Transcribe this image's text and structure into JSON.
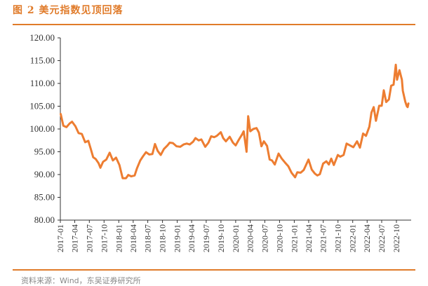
{
  "figure": {
    "title": "图 2 美元指数见顶回落",
    "source": "资料来源：Wind，东吴证券研究所"
  },
  "colors": {
    "accent": "#E07B2A",
    "line": "#ED7D31",
    "axis": "#333333"
  },
  "chart_data": {
    "type": "line",
    "title": "",
    "xlabel": "",
    "ylabel": "",
    "ylim": [
      80,
      120
    ],
    "yticks": [
      "80.00",
      "85.00",
      "90.00",
      "95.00",
      "100.00",
      "105.00",
      "110.00",
      "115.00",
      "120.00"
    ],
    "xticks": [
      "2017-01",
      "2017-04",
      "2017-07",
      "2017-10",
      "2018-01",
      "2018-04",
      "2018-07",
      "2018-10",
      "2019-01",
      "2019-04",
      "2019-07",
      "2019-10",
      "2020-01",
      "2020-04",
      "2020-07",
      "2020-10",
      "2021-01",
      "2021-04",
      "2021-07",
      "2021-10",
      "2022-01",
      "2022-04",
      "2022-07",
      "2022-10"
    ],
    "grid": false,
    "legend": "none",
    "series": [
      {
        "values": [
          [
            "2017-01-03",
            103.3
          ],
          [
            "2017-01-20",
            100.7
          ],
          [
            "2017-02-08",
            100.4
          ],
          [
            "2017-02-28",
            101.2
          ],
          [
            "2017-03-15",
            101.6
          ],
          [
            "2017-04-05",
            100.6
          ],
          [
            "2017-04-25",
            99.1
          ],
          [
            "2017-05-15",
            98.9
          ],
          [
            "2017-06-05",
            97.1
          ],
          [
            "2017-06-25",
            97.4
          ],
          [
            "2017-07-10",
            95.6
          ],
          [
            "2017-07-25",
            93.8
          ],
          [
            "2017-08-10",
            93.4
          ],
          [
            "2017-08-28",
            92.5
          ],
          [
            "2017-09-08",
            91.5
          ],
          [
            "2017-09-25",
            92.8
          ],
          [
            "2017-10-15",
            93.3
          ],
          [
            "2017-11-05",
            94.8
          ],
          [
            "2017-11-25",
            93.1
          ],
          [
            "2017-12-15",
            93.7
          ],
          [
            "2018-01-05",
            92.1
          ],
          [
            "2018-01-25",
            89.2
          ],
          [
            "2018-02-15",
            89.2
          ],
          [
            "2018-03-01",
            89.9
          ],
          [
            "2018-03-20",
            89.6
          ],
          [
            "2018-04-10",
            89.8
          ],
          [
            "2018-04-25",
            91.4
          ],
          [
            "2018-05-15",
            93.1
          ],
          [
            "2018-06-01",
            94.0
          ],
          [
            "2018-06-20",
            94.9
          ],
          [
            "2018-07-10",
            94.4
          ],
          [
            "2018-07-30",
            94.5
          ],
          [
            "2018-08-15",
            96.7
          ],
          [
            "2018-09-01",
            95.2
          ],
          [
            "2018-09-20",
            94.3
          ],
          [
            "2018-10-10",
            95.6
          ],
          [
            "2018-11-01",
            96.4
          ],
          [
            "2018-11-15",
            97.0
          ],
          [
            "2018-12-05",
            96.9
          ],
          [
            "2018-12-28",
            96.2
          ],
          [
            "2019-01-20",
            96.1
          ],
          [
            "2019-02-10",
            96.6
          ],
          [
            "2019-03-01",
            96.8
          ],
          [
            "2019-03-20",
            96.6
          ],
          [
            "2019-04-10",
            97.2
          ],
          [
            "2019-04-25",
            98.0
          ],
          [
            "2019-05-15",
            97.5
          ],
          [
            "2019-06-01",
            97.7
          ],
          [
            "2019-06-25",
            96.1
          ],
          [
            "2019-07-15",
            97.0
          ],
          [
            "2019-08-01",
            98.4
          ],
          [
            "2019-08-20",
            98.2
          ],
          [
            "2019-09-05",
            98.5
          ],
          [
            "2019-09-30",
            99.3
          ],
          [
            "2019-10-15",
            98.0
          ],
          [
            "2019-11-01",
            97.3
          ],
          [
            "2019-11-25",
            98.3
          ],
          [
            "2019-12-15",
            97.0
          ],
          [
            "2020-01-01",
            96.4
          ],
          [
            "2020-01-20",
            97.6
          ],
          [
            "2020-02-10",
            98.8
          ],
          [
            "2020-02-20",
            99.5
          ],
          [
            "2020-03-09",
            95.0
          ],
          [
            "2020-03-19",
            102.8
          ],
          [
            "2020-04-01",
            99.5
          ],
          [
            "2020-04-20",
            100.0
          ],
          [
            "2020-05-10",
            100.2
          ],
          [
            "2020-05-25",
            99.2
          ],
          [
            "2020-06-10",
            96.2
          ],
          [
            "2020-06-25",
            97.3
          ],
          [
            "2020-07-15",
            96.3
          ],
          [
            "2020-07-31",
            93.3
          ],
          [
            "2020-08-15",
            93.1
          ],
          [
            "2020-09-01",
            92.2
          ],
          [
            "2020-09-25",
            94.6
          ],
          [
            "2020-10-15",
            93.5
          ],
          [
            "2020-11-05",
            92.6
          ],
          [
            "2020-11-25",
            91.8
          ],
          [
            "2020-12-15",
            90.4
          ],
          [
            "2021-01-06",
            89.4
          ],
          [
            "2021-01-20",
            90.5
          ],
          [
            "2021-02-10",
            90.4
          ],
          [
            "2021-03-01",
            91.0
          ],
          [
            "2021-03-31",
            93.3
          ],
          [
            "2021-04-20",
            91.1
          ],
          [
            "2021-05-10",
            90.2
          ],
          [
            "2021-05-25",
            89.8
          ],
          [
            "2021-06-10",
            90.1
          ],
          [
            "2021-06-30",
            92.4
          ],
          [
            "2021-07-20",
            92.9
          ],
          [
            "2021-08-05",
            92.2
          ],
          [
            "2021-08-20",
            93.5
          ],
          [
            "2021-09-05",
            92.1
          ],
          [
            "2021-09-30",
            94.3
          ],
          [
            "2021-10-15",
            93.9
          ],
          [
            "2021-11-05",
            94.3
          ],
          [
            "2021-11-24",
            96.8
          ],
          [
            "2021-12-15",
            96.4
          ],
          [
            "2022-01-05",
            96.0
          ],
          [
            "2022-01-28",
            97.3
          ],
          [
            "2022-02-15",
            95.9
          ],
          [
            "2022-03-07",
            99.0
          ],
          [
            "2022-03-25",
            98.5
          ],
          [
            "2022-04-15",
            100.5
          ],
          [
            "2022-04-28",
            103.6
          ],
          [
            "2022-05-12",
            104.8
          ],
          [
            "2022-05-26",
            101.8
          ],
          [
            "2022-06-15",
            105.1
          ],
          [
            "2022-07-01",
            105.1
          ],
          [
            "2022-07-14",
            108.5
          ],
          [
            "2022-07-29",
            105.9
          ],
          [
            "2022-08-15",
            106.5
          ],
          [
            "2022-08-29",
            109.5
          ],
          [
            "2022-09-13",
            109.7
          ],
          [
            "2022-09-27",
            114.1
          ],
          [
            "2022-10-05",
            110.8
          ],
          [
            "2022-10-20",
            112.9
          ],
          [
            "2022-11-04",
            110.8
          ],
          [
            "2022-11-10",
            108.4
          ],
          [
            "2022-11-25",
            106.0
          ],
          [
            "2022-12-05",
            105.0
          ],
          [
            "2022-12-10",
            104.8
          ],
          [
            "2022-12-15",
            105.6
          ]
        ]
      }
    ]
  }
}
